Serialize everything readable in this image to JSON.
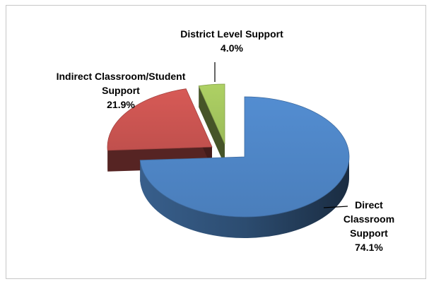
{
  "chart_data": {
    "type": "pie",
    "title": "",
    "is_3d": true,
    "legend": "none",
    "slices": [
      {
        "name": "Direct Classroom Support",
        "label_lines": [
          "Direct",
          "Classroom",
          "Support"
        ],
        "percent_label": "74.1%",
        "value": 74.1,
        "color": "#4a7ebb"
      },
      {
        "name": "Indirect Classroom/Student Support",
        "label_lines": [
          "Indirect Classroom/Student",
          "Support"
        ],
        "percent_label": "21.9%",
        "value": 21.9,
        "color": "#c0504d"
      },
      {
        "name": "District Level Support",
        "label_lines": [
          "District Level Support"
        ],
        "percent_label": "4.0%",
        "value": 4.0,
        "color": "#9bbb59"
      }
    ]
  }
}
